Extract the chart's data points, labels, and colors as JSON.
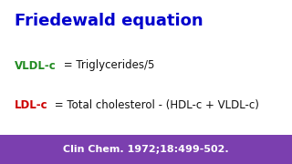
{
  "title": "Friedewald equation",
  "title_color": "#0000cc",
  "bg_color": "#ffffff",
  "footer_bg_color": "#7b3faf",
  "footer_text": "Clin Chem. 1972;18:499-502.",
  "footer_text_color": "#ffffff",
  "vldl_label": "VLDL-c",
  "vldl_label_color": "#228B22",
  "vldl_eq": " = Triglycerides/5",
  "ldl_label": "LDL-c",
  "ldl_label_color": "#cc0000",
  "ldl_eq": " = Total cholesterol - (HDL-c + VLDL-c)",
  "eq_color": "#111111",
  "title_fontsize": 13,
  "eq_fontsize": 8.5,
  "footer_fontsize": 8
}
